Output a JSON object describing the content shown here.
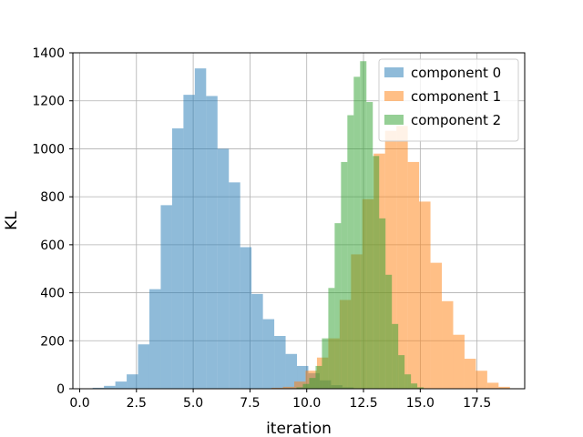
{
  "chart_data": {
    "type": "histogram",
    "xlabel": "iteration",
    "ylabel": "KL",
    "xlim": [
      -0.3,
      19.6
    ],
    "ylim": [
      0,
      1400
    ],
    "xticks": [
      0.0,
      2.5,
      5.0,
      7.5,
      10.0,
      12.5,
      15.0,
      17.5
    ],
    "xtick_labels": [
      "0.0",
      "2.5",
      "5.0",
      "7.5",
      "10.0",
      "12.5",
      "15.0",
      "17.5"
    ],
    "yticks": [
      0,
      200,
      400,
      600,
      800,
      1000,
      1200,
      1400
    ],
    "ytick_labels": [
      "0",
      "200",
      "400",
      "600",
      "800",
      "1000",
      "1200",
      "1400"
    ],
    "grid": true,
    "legend_position": "top-right",
    "series": [
      {
        "name": "component 0",
        "color": "#1f77b4",
        "alpha": 0.5,
        "bin_start": 0.57,
        "bin_width": 0.5,
        "counts": [
          4,
          12,
          30,
          60,
          185,
          415,
          765,
          1085,
          1225,
          1335,
          1220,
          1000,
          860,
          590,
          395,
          290,
          220,
          145,
          95,
          65,
          35,
          15,
          6,
          2
        ]
      },
      {
        "name": "component 1",
        "color": "#ff7f0e",
        "alpha": 0.5,
        "bin_start": 8.45,
        "bin_width": 0.5,
        "counts": [
          4,
          8,
          30,
          75,
          130,
          210,
          370,
          560,
          790,
          980,
          1075,
          1095,
          945,
          780,
          525,
          365,
          225,
          125,
          75,
          25,
          8,
          2
        ]
      },
      {
        "name": "component 2",
        "color": "#2ca02c",
        "alpha": 0.5,
        "bin_start": 9.27,
        "bin_width": 0.28,
        "counts": [
          2,
          6,
          20,
          45,
          95,
          210,
          420,
          690,
          945,
          1140,
          1300,
          1365,
          1195,
          970,
          710,
          475,
          270,
          140,
          60,
          22,
          6,
          2
        ]
      }
    ]
  }
}
